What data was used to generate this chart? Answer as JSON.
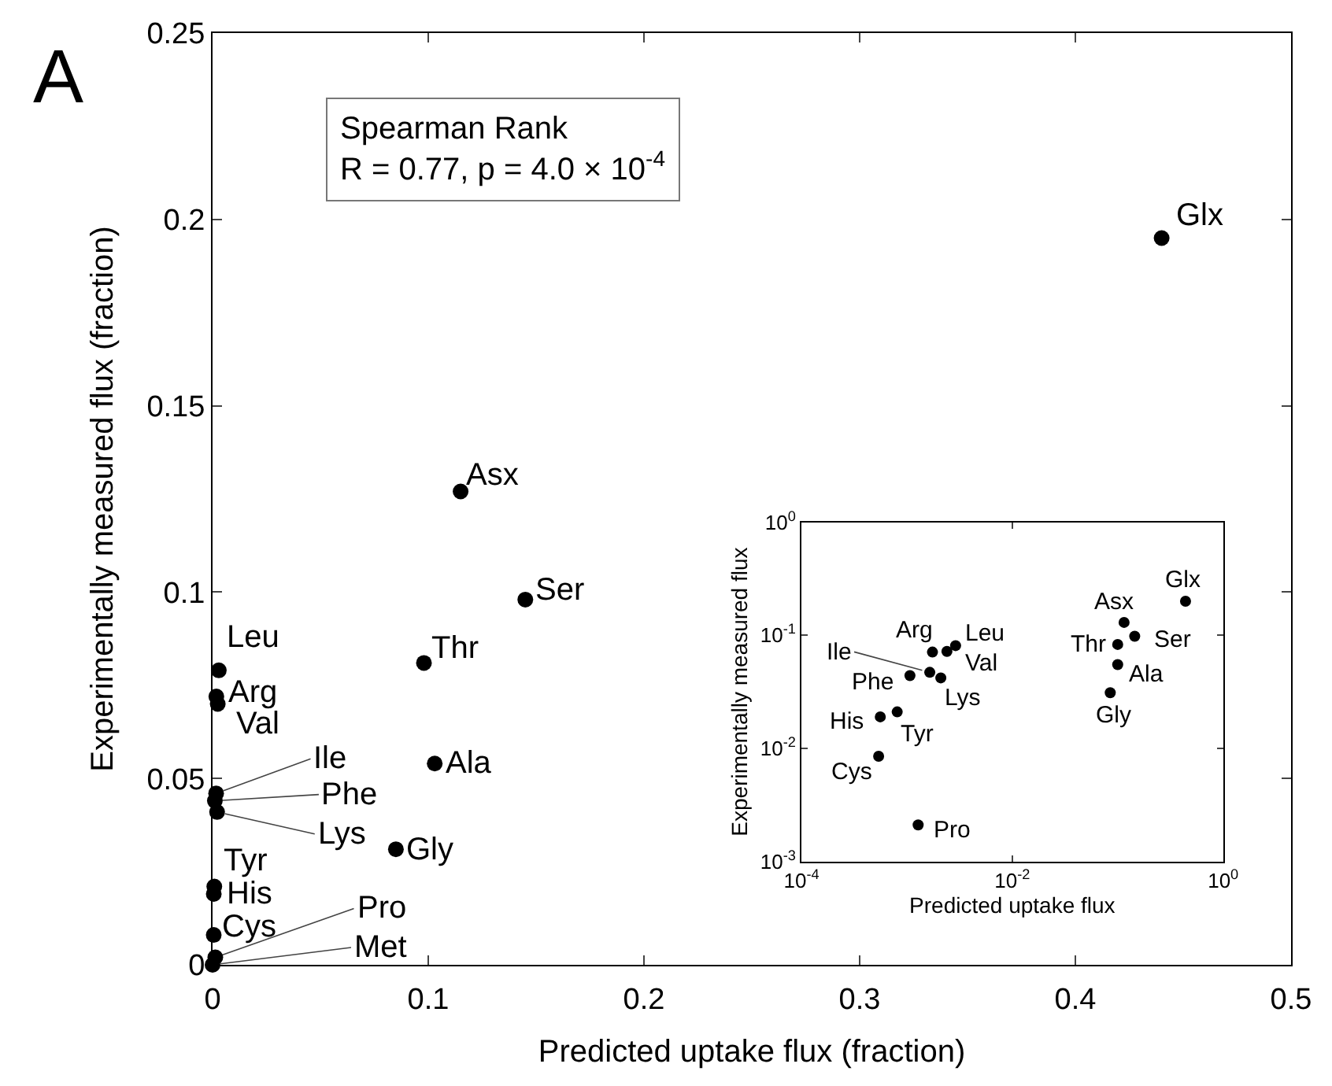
{
  "chart_data": [
    {
      "type": "scatter",
      "title": "A",
      "xlabel": "Predicted uptake flux (fraction)",
      "ylabel": "Experimentally measured flux (fraction)",
      "x": [
        0.44,
        0.115,
        0.145,
        0.098,
        0.103,
        0.085,
        0.0029,
        0.00175,
        0.0024,
        0.00165,
        0.00107,
        0.0021,
        0.00081,
        0.00056,
        0.00054,
        0.00128,
        0.0
      ],
      "series": [
        {
          "color": "#000000",
          "values": [
            0.195,
            0.127,
            0.098,
            0.081,
            0.054,
            0.031,
            0.079,
            0.072,
            0.07,
            0.046,
            0.044,
            0.041,
            0.021,
            0.019,
            0.008,
            0.002,
            0.0
          ]
        }
      ],
      "xlim": [
        0,
        0.5
      ],
      "xticks": [
        0,
        0.1,
        0.2,
        0.3,
        0.4,
        0.5
      ],
      "ylim": [
        0,
        0.25
      ],
      "yticks": [
        0,
        0.05,
        0.1,
        0.15,
        0.2,
        0.25
      ],
      "marker": "circle",
      "annotations": [
        {
          "text": "Glx",
          "x": 0.44,
          "y": 0.195
        },
        {
          "text": "Asx",
          "x": 0.115,
          "y": 0.127
        },
        {
          "text": "Ser",
          "x": 0.145,
          "y": 0.098
        },
        {
          "text": "Thr",
          "x": 0.098,
          "y": 0.081
        },
        {
          "text": "Ala",
          "x": 0.103,
          "y": 0.054
        },
        {
          "text": "Gly",
          "x": 0.085,
          "y": 0.031
        },
        {
          "text": "Leu",
          "x": 0.0029,
          "y": 0.079
        },
        {
          "text": "Arg",
          "x": 0.00175,
          "y": 0.072
        },
        {
          "text": "Val",
          "x": 0.0024,
          "y": 0.07
        },
        {
          "text": "Ile",
          "x": 0.00165,
          "y": 0.046
        },
        {
          "text": "Phe",
          "x": 0.00107,
          "y": 0.044
        },
        {
          "text": "Lys",
          "x": 0.0021,
          "y": 0.041
        },
        {
          "text": "Tyr",
          "x": 0.00081,
          "y": 0.021
        },
        {
          "text": "His",
          "x": 0.00056,
          "y": 0.019
        },
        {
          "text": "Cys",
          "x": 0.00054,
          "y": 0.008
        },
        {
          "text": "Pro",
          "x": 0.00128,
          "y": 0.002
        },
        {
          "text": "Met",
          "x": 0.0,
          "y": 0.0
        },
        "Spearman Rank\nR = 0.77, p = 4.0 × 10$^{-4}$"
      ]
    },
    {
      "type": "scatter",
      "xlabel": "Predicted uptake flux",
      "ylabel": "Experimentally measured flux",
      "log": "xy",
      "x": [
        0.44,
        0.115,
        0.145,
        0.1,
        0.1,
        0.085,
        0.0029,
        0.00175,
        0.0024,
        0.00165,
        0.00107,
        0.0021,
        0.00081,
        0.00056,
        0.00054,
        0.00128
      ],
      "series": [
        {
          "color": "#000000",
          "values": [
            0.2,
            0.13,
            0.098,
            0.083,
            0.055,
            0.031,
            0.081,
            0.071,
            0.072,
            0.047,
            0.044,
            0.042,
            0.021,
            0.019,
            0.0085,
            0.0021
          ]
        }
      ],
      "xlim": [
        0.0001,
        1
      ],
      "xticks": [
        {
          "value": 0.0001,
          "label": "10$^{-4}$"
        },
        {
          "value": 0.01,
          "label": "10$^{-2}$"
        },
        {
          "value": 1,
          "label": "10$^{0}$"
        }
      ],
      "ylim": [
        0.001,
        1
      ],
      "yticks": [
        {
          "value": 0.001,
          "label": "10$^{-3}$"
        },
        {
          "value": 0.01,
          "label": "10$^{-2}$"
        },
        {
          "value": 0.1,
          "label": "10$^{-1}$"
        },
        {
          "value": 1,
          "label": "10$^{0}$"
        }
      ],
      "marker": "circle",
      "annotations": [
        {
          "text": "Glx",
          "x": 0.44,
          "y": 0.2
        },
        {
          "text": "Asx",
          "x": 0.115,
          "y": 0.13
        },
        {
          "text": "Ser",
          "x": 0.145,
          "y": 0.098
        },
        {
          "text": "Thr",
          "x": 0.1,
          "y": 0.083
        },
        {
          "text": "Ala",
          "x": 0.1,
          "y": 0.055
        },
        {
          "text": "Gly",
          "x": 0.085,
          "y": 0.031
        },
        {
          "text": "Leu",
          "x": 0.0029,
          "y": 0.081
        },
        {
          "text": "Arg",
          "x": 0.00175,
          "y": 0.071
        },
        {
          "text": "Val",
          "x": 0.0024,
          "y": 0.072
        },
        {
          "text": "Ile",
          "x": 0.00165,
          "y": 0.047
        },
        {
          "text": "Phe",
          "x": 0.00107,
          "y": 0.044
        },
        {
          "text": "Lys",
          "x": 0.0021,
          "y": 0.042
        },
        {
          "text": "Tyr",
          "x": 0.00081,
          "y": 0.021
        },
        {
          "text": "His",
          "x": 0.00056,
          "y": 0.019
        },
        {
          "text": "Cys",
          "x": 0.00054,
          "y": 0.0085
        },
        {
          "text": "Pro",
          "x": 0.00128,
          "y": 0.0021
        }
      ]
    }
  ]
}
